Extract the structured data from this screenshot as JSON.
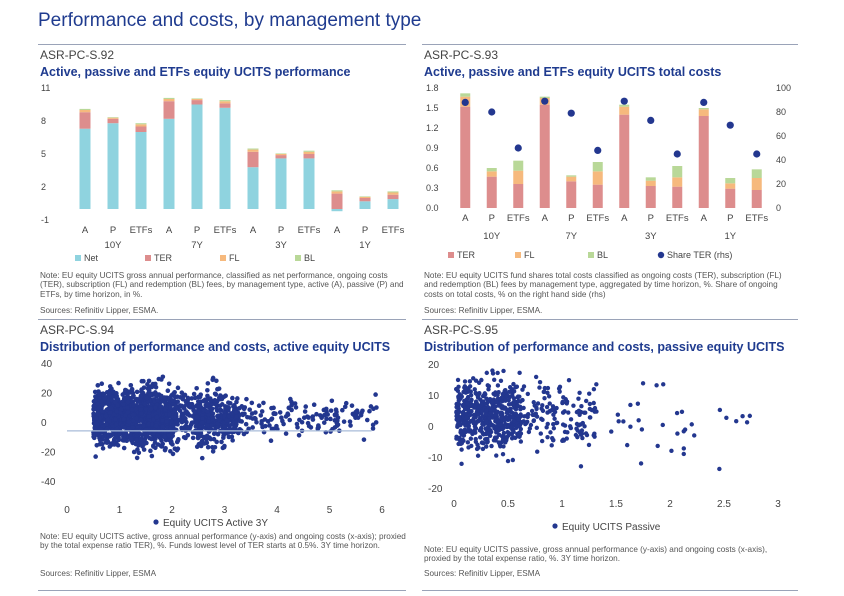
{
  "page_title": "Performance and costs, by management type",
  "panels": [
    {
      "id": "ASR-PC-S.92",
      "title": "Active, passive and ETFs equity UCITS performance",
      "note": "Note: EU equity UCITS gross annual performance, classified as net performance, ongoing costs (TER), subscription (FL) and redemption (BL) fees, by management type, active (A), passive (P) and ETFs, by time horizon, in %.",
      "sources": "Sources: Refinitiv Lipper, ESMA."
    },
    {
      "id": "ASR-PC-S.93",
      "title": "Active, passive and ETFs equity UCITS total costs",
      "note": "Note: EU equity UCITS  fund shares total costs classified as ongoing costs (TER), subscription (FL) and redemption (BL) fees by management type, aggregated by time horizon, %. Share of ongoing costs on total costs, % on the right hand side (rhs)",
      "sources": "Sources: Refinitiv Lipper, ESMA."
    },
    {
      "id": "ASR-PC-S.94",
      "title": "Distribution of performance and costs, active equity UCITS",
      "note": "Note: EU equity UCITS active, gross annual performance (y-axis) and ongoing costs (x-axis); proxied by the total expense ratio  TER), %. Funds lowest level of TER starts at 0.5%. 3Y time horizon.",
      "sources": "Sources: Refinitiv Lipper, ESMA"
    },
    {
      "id": "ASR-PC-S.95",
      "title": "Distribution of performance and costs, passive equity UCITS",
      "note": "Note: EU equity UCITS passive, gross annual performance (y-axis) and ongoing costs (x-axis), proxied by the total expense ratio, %. 3Y time horizon.",
      "sources": "Sources: Refinitiv Lipper, ESMA"
    }
  ],
  "colors": {
    "net": "#8fd3df",
    "ter": "#dd8d8d",
    "fl": "#f6b97d",
    "bl": "#b9d898",
    "dot": "#23378f"
  },
  "chart_data": [
    {
      "type": "bar",
      "stacked": true,
      "title": "Active, passive and ETFs equity UCITS performance",
      "categories": [
        "A",
        "P",
        "ETFs",
        "A",
        "P",
        "ETFs",
        "A",
        "P",
        "ETFs",
        "A",
        "P",
        "ETFs"
      ],
      "groups": [
        "10Y",
        "7Y",
        "3Y",
        "1Y"
      ],
      "ylim": [
        -1,
        11
      ],
      "yticks": [
        "11",
        "8",
        "5",
        "2",
        "-1"
      ],
      "series": [
        {
          "name": "Net",
          "values": [
            7.3,
            7.8,
            7.0,
            8.2,
            9.5,
            9.2,
            3.8,
            4.6,
            4.6,
            -0.2,
            0.7,
            0.9
          ]
        },
        {
          "name": "TER",
          "values": [
            1.5,
            0.4,
            0.5,
            1.6,
            0.4,
            0.4,
            1.4,
            0.3,
            0.4,
            1.4,
            0.3,
            0.4
          ]
        },
        {
          "name": "FL",
          "values": [
            0.2,
            0.1,
            0.2,
            0.2,
            0.1,
            0.2,
            0.2,
            0.1,
            0.2,
            0.2,
            0.1,
            0.2
          ]
        },
        {
          "name": "BL",
          "values": [
            0.1,
            0.05,
            0.1,
            0.1,
            0.05,
            0.1,
            0.1,
            0.05,
            0.1,
            0.1,
            0.05,
            0.1
          ]
        }
      ]
    },
    {
      "type": "bar",
      "stacked": true,
      "title": "Active, passive and ETFs equity UCITS total costs",
      "categories": [
        "A",
        "P",
        "ETFs",
        "A",
        "P",
        "ETFs",
        "A",
        "P",
        "ETFs",
        "A",
        "P",
        "ETFs"
      ],
      "groups": [
        "10Y",
        "7Y",
        "3Y",
        "1Y"
      ],
      "ylim": [
        0,
        1.8
      ],
      "yticks": [
        "1.8",
        "1.5",
        "1.2",
        "0.9",
        "0.6",
        "0.3",
        "0.0"
      ],
      "y2lim": [
        0,
        100
      ],
      "y2ticks": [
        "100",
        "80",
        "60",
        "40",
        "20",
        "0"
      ],
      "series": [
        {
          "name": "TER",
          "values": [
            1.52,
            0.47,
            0.36,
            1.55,
            0.4,
            0.35,
            1.4,
            0.33,
            0.32,
            1.38,
            0.29,
            0.27
          ]
        },
        {
          "name": "FL",
          "values": [
            0.15,
            0.08,
            0.2,
            0.1,
            0.07,
            0.2,
            0.12,
            0.08,
            0.14,
            0.1,
            0.08,
            0.18
          ]
        },
        {
          "name": "BL",
          "values": [
            0.05,
            0.05,
            0.15,
            0.02,
            0.02,
            0.14,
            0.03,
            0.05,
            0.17,
            0.02,
            0.08,
            0.13
          ]
        },
        {
          "name": "Share TER (rhs)",
          "axis": "rhs",
          "values": [
            88,
            80,
            50,
            89,
            79,
            48,
            89,
            73,
            45,
            88,
            69,
            45
          ]
        }
      ]
    },
    {
      "type": "scatter",
      "title": "Distribution of performance and costs, active equity UCITS",
      "xlim": [
        0,
        6
      ],
      "ylim": [
        -40,
        40
      ],
      "xticks": [
        "0",
        "1",
        "2",
        "3",
        "4",
        "5",
        "6"
      ],
      "yticks": [
        "40",
        "20",
        "0",
        "-20",
        "-40"
      ],
      "legend": "Equity UCITS Active 3Y",
      "points_generated": "dense cloud, TER 0.5–6%, performance mostly -30 to 30%",
      "reference_line_y": -6
    },
    {
      "type": "scatter",
      "title": "Distribution of performance and costs, passive equity UCITS",
      "xlim": [
        0,
        3
      ],
      "ylim": [
        -20,
        20
      ],
      "xticks": [
        "0",
        "0.5",
        "1",
        "1.5",
        "2",
        "2.5",
        "3"
      ],
      "yticks": [
        "20",
        "10",
        "0",
        "-10",
        "-20"
      ],
      "legend": "Equity UCITS Passive",
      "points_generated": "cloud, TER 0–2.8%, performance mostly -15 to 18%"
    }
  ],
  "legends": {
    "s92": [
      "Net",
      "TER",
      "FL",
      "BL"
    ],
    "s93": [
      "TER",
      "FL",
      "BL",
      "Share TER (rhs)"
    ]
  }
}
